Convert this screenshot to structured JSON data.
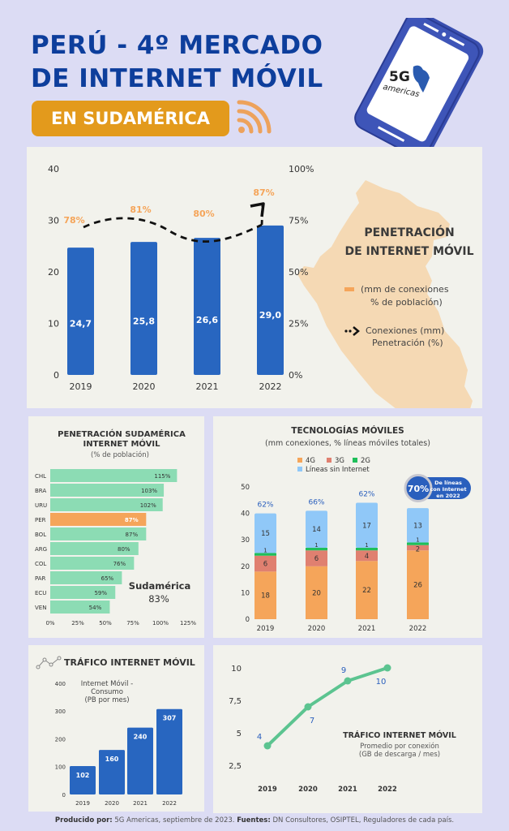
{
  "header": {
    "title_line1": "PERÚ - 4º MERCADO",
    "title_line2": "DE INTERNET MÓVIL",
    "badge": "EN SUDAMÉRICA",
    "logo_text_main": "5G",
    "logo_text_sub": "americas"
  },
  "colors": {
    "title_blue": "#0d3e9c",
    "bar_blue": "#2866c0",
    "orange": "#f5a55a",
    "badge_orange": "#e39a1c",
    "green_bar": "#8cdcb4",
    "line_green": "#5cc490",
    "red_3g": "#e08070",
    "green_2g": "#1fbf5a",
    "light_blue": "#90c8f8"
  },
  "chart_data": [
    {
      "id": "penetracion-peru",
      "type": "bar",
      "title": "PENETRACIÓN DE INTERNET MÓVIL",
      "legend": [
        {
          "label_line1": "(mm de conexiones",
          "label_line2": "% de población)",
          "marker": "bar"
        },
        {
          "label_line1": "Conexiones (mm)",
          "label_line2": "Penetración (%)",
          "marker": "dashed-arrow"
        }
      ],
      "categories": [
        "2019",
        "2020",
        "2021",
        "2022"
      ],
      "series": [
        {
          "name": "Conexiones (mm)",
          "values": [
            24.7,
            25.8,
            26.6,
            29.0
          ],
          "labels": [
            "24,7",
            "25,8",
            "26,6",
            "29,0"
          ]
        },
        {
          "name": "Penetración (%)",
          "values": [
            78,
            81,
            80,
            87
          ],
          "labels": [
            "78%",
            "81%",
            "80%",
            "87%"
          ]
        }
      ],
      "ylim": [
        0,
        40
      ],
      "yticks": [
        "0",
        "10",
        "20",
        "30",
        "40"
      ],
      "y2lim": [
        0,
        100
      ],
      "y2ticks": [
        "0%",
        "25%",
        "50%",
        "75%",
        "100%"
      ]
    },
    {
      "id": "penetracion-sudamerica",
      "type": "bar",
      "orientation": "horizontal",
      "title_line1": "PENETRACIÓN SUDAMÉRICA",
      "title_line2": "INTERNET MÓVIL",
      "subtitle": "(% de población)",
      "categories": [
        "CHL",
        "BRA",
        "URU",
        "PER",
        "BOL",
        "ARG",
        "COL",
        "PAR",
        "ECU",
        "VEN"
      ],
      "values": [
        115,
        103,
        102,
        87,
        87,
        80,
        76,
        65,
        59,
        54
      ],
      "highlight": "PER",
      "xlim": [
        0,
        125
      ],
      "xticks": [
        "0%",
        "25%",
        "50%",
        "75%",
        "100%",
        "125%"
      ],
      "annotation_line1": "Sudamérica",
      "annotation_line2": "83%"
    },
    {
      "id": "tecnologias-moviles",
      "type": "bar",
      "stacked": true,
      "title": "TECNOLOGÍAS MÓVILES",
      "subtitle": "(mm conexiones, % líneas móviles totales)",
      "categories": [
        "2019",
        "2020",
        "2021",
        "2022"
      ],
      "series": [
        {
          "name": "4G",
          "values": [
            18,
            20,
            22,
            26
          ]
        },
        {
          "name": "3G",
          "values": [
            6,
            6,
            4,
            2
          ]
        },
        {
          "name": "2G",
          "values": [
            1,
            1,
            1,
            1
          ]
        },
        {
          "name": "Líneas sin Internet",
          "values": [
            15,
            14,
            17,
            13
          ]
        }
      ],
      "top_labels": [
        "62%",
        "66%",
        "62%",
        ""
      ],
      "ylim": [
        0,
        50
      ],
      "yticks": [
        "0",
        "10",
        "20",
        "30",
        "40",
        "50"
      ],
      "callout_value": "70%",
      "callout_line1": "De líneas",
      "callout_line2": "con Internet",
      "callout_line3": "en 2022"
    },
    {
      "id": "trafico-consumo",
      "type": "bar",
      "title": "TRÁFICO INTERNET MÓVIL",
      "subtitle_line1": "Internet Móvil -",
      "subtitle_line2": "Consumo",
      "subtitle_line3": "(PB por mes)",
      "categories": [
        "2019",
        "2020",
        "2021",
        "2022"
      ],
      "values": [
        102,
        160,
        240,
        307
      ],
      "ylim": [
        0,
        400
      ],
      "yticks": [
        "0",
        "100",
        "200",
        "300",
        "400"
      ]
    },
    {
      "id": "trafico-promedio",
      "type": "line",
      "title": "TRÁFICO INTERNET MÓVIL",
      "subtitle_line1": "Promedio por conexión",
      "subtitle_line2": "(GB de descarga / mes)",
      "categories": [
        "2019",
        "2020",
        "2021",
        "2022"
      ],
      "values": [
        4,
        7,
        9,
        10
      ],
      "ylim": [
        2.5,
        10
      ],
      "yticks": [
        "2,5",
        "5",
        "7,5",
        "10"
      ]
    }
  ],
  "footer": {
    "produced_label": "Producido por:",
    "produced_value": "5G Americas, septiembre de 2023.",
    "sources_label": "Fuentes:",
    "sources_value": "DN Consultores, OSIPTEL, Reguladores de cada país."
  }
}
